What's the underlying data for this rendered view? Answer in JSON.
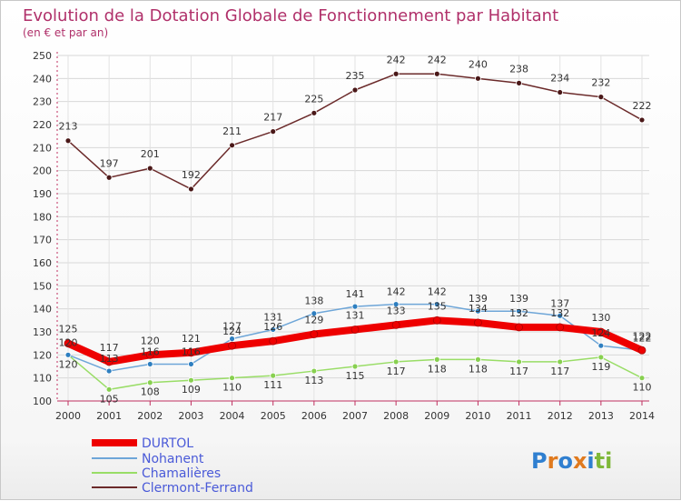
{
  "chart_data": {
    "type": "line",
    "title": "Evolution de la Dotation Globale de Fonctionnement par Habitant",
    "subtitle": "(en € et par an)",
    "xlabel": "",
    "ylabel": "",
    "ylim": [
      100,
      250
    ],
    "yticks": [
      100,
      110,
      120,
      130,
      140,
      150,
      160,
      170,
      180,
      190,
      200,
      210,
      220,
      230,
      240,
      250
    ],
    "grid": true,
    "legend_position": "bottom-left",
    "x": [
      "2000",
      "2001",
      "2002",
      "2003",
      "2004",
      "2005",
      "2006",
      "2007",
      "2008",
      "2009",
      "2010",
      "2011",
      "2012",
      "2013",
      "2014"
    ],
    "series": [
      {
        "name": "DURTOL",
        "color": "#ee0000",
        "values": [
          125,
          117,
          120,
          121,
          124,
          126,
          129,
          131,
          133,
          135,
          134,
          132,
          132,
          130,
          122
        ]
      },
      {
        "name": "Nohanent",
        "color": "#6ea6d8",
        "values": [
          120,
          113,
          116,
          116,
          127,
          131,
          138,
          141,
          142,
          142,
          139,
          139,
          137,
          124,
          122
        ]
      },
      {
        "name": "Chamalières",
        "color": "#99dd66",
        "values": [
          120,
          105,
          108,
          109,
          110,
          111,
          113,
          115,
          117,
          118,
          118,
          117,
          117,
          119,
          110
        ]
      },
      {
        "name": "Clermont-Ferrand",
        "color": "#6b2a2a",
        "values": [
          213,
          197,
          201,
          192,
          211,
          217,
          225,
          235,
          242,
          242,
          240,
          238,
          234,
          232,
          222
        ]
      }
    ]
  },
  "branding": {
    "logo_text": "Proxiti",
    "letters": [
      "P",
      "r",
      "o",
      "x",
      "i",
      "t",
      "i"
    ],
    "letter_colors": [
      "#2f7fd0",
      "#e07a1e",
      "#2f7fd0",
      "#e07a1e",
      "#2f7fd0",
      "#7fb83a",
      "#7fb83a"
    ]
  }
}
